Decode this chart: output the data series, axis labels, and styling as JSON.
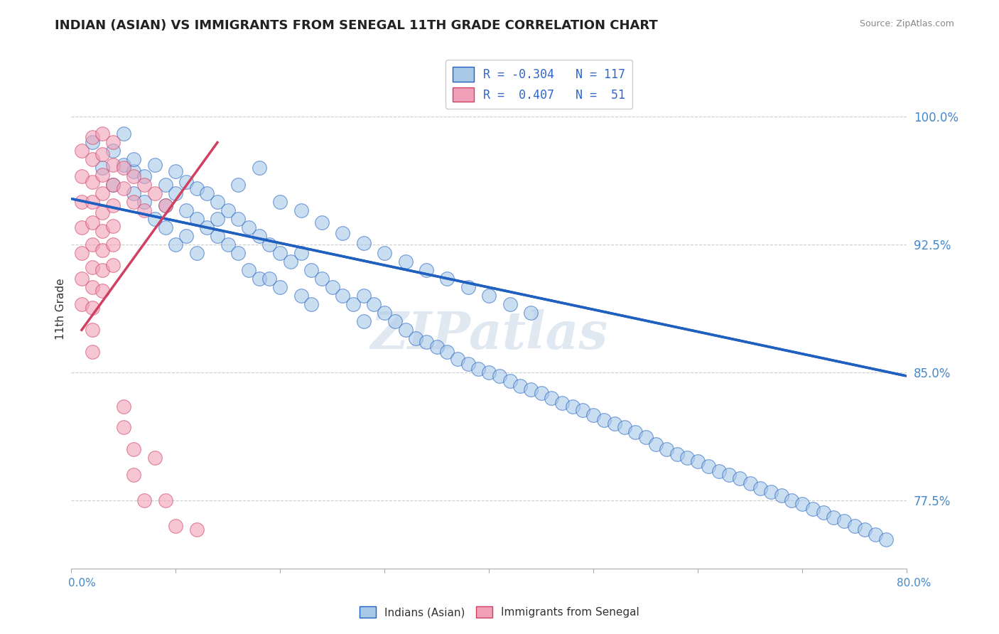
{
  "title": "INDIAN (ASIAN) VS IMMIGRANTS FROM SENEGAL 11TH GRADE CORRELATION CHART",
  "source": "Source: ZipAtlas.com",
  "ylabel": "11th Grade",
  "ytick_values": [
    0.775,
    0.85,
    0.925,
    1.0
  ],
  "xlim": [
    0.0,
    0.8
  ],
  "ylim": [
    0.735,
    1.04
  ],
  "color_blue": "#a8c8e8",
  "color_pink": "#f0a0b8",
  "trendline_blue": "#2060c0",
  "trendline_pink": "#d04060",
  "watermark": "ZIPatlas",
  "blue_trend_x0": 0.0,
  "blue_trend_y0": 0.952,
  "blue_trend_x1": 0.8,
  "blue_trend_y1": 0.848,
  "pink_trend_x0": 0.01,
  "pink_trend_y0": 0.875,
  "pink_trend_x1": 0.14,
  "pink_trend_y1": 0.985,
  "blue_x": [
    0.02,
    0.03,
    0.04,
    0.04,
    0.05,
    0.05,
    0.06,
    0.06,
    0.06,
    0.07,
    0.07,
    0.08,
    0.08,
    0.09,
    0.09,
    0.09,
    0.1,
    0.1,
    0.1,
    0.11,
    0.11,
    0.11,
    0.12,
    0.12,
    0.12,
    0.13,
    0.13,
    0.14,
    0.14,
    0.15,
    0.15,
    0.16,
    0.16,
    0.17,
    0.17,
    0.18,
    0.18,
    0.19,
    0.19,
    0.2,
    0.2,
    0.21,
    0.22,
    0.22,
    0.23,
    0.23,
    0.24,
    0.25,
    0.26,
    0.27,
    0.28,
    0.28,
    0.29,
    0.3,
    0.31,
    0.32,
    0.33,
    0.34,
    0.35,
    0.36,
    0.37,
    0.38,
    0.39,
    0.4,
    0.41,
    0.42,
    0.43,
    0.44,
    0.45,
    0.46,
    0.47,
    0.48,
    0.49,
    0.5,
    0.51,
    0.52,
    0.53,
    0.54,
    0.55,
    0.56,
    0.57,
    0.58,
    0.59,
    0.6,
    0.61,
    0.62,
    0.63,
    0.64,
    0.65,
    0.66,
    0.67,
    0.68,
    0.69,
    0.7,
    0.71,
    0.72,
    0.73,
    0.74,
    0.75,
    0.76,
    0.77,
    0.78,
    0.14,
    0.16,
    0.18,
    0.2,
    0.22,
    0.24,
    0.26,
    0.28,
    0.3,
    0.32,
    0.34,
    0.36,
    0.38,
    0.4,
    0.42,
    0.44
  ],
  "blue_y": [
    0.985,
    0.97,
    0.98,
    0.96,
    0.972,
    0.99,
    0.968,
    0.955,
    0.975,
    0.965,
    0.95,
    0.972,
    0.94,
    0.96,
    0.948,
    0.935,
    0.968,
    0.955,
    0.925,
    0.962,
    0.945,
    0.93,
    0.958,
    0.94,
    0.92,
    0.955,
    0.935,
    0.95,
    0.93,
    0.945,
    0.925,
    0.94,
    0.92,
    0.935,
    0.91,
    0.93,
    0.905,
    0.925,
    0.905,
    0.92,
    0.9,
    0.915,
    0.92,
    0.895,
    0.91,
    0.89,
    0.905,
    0.9,
    0.895,
    0.89,
    0.895,
    0.88,
    0.89,
    0.885,
    0.88,
    0.875,
    0.87,
    0.868,
    0.865,
    0.862,
    0.858,
    0.855,
    0.852,
    0.85,
    0.848,
    0.845,
    0.842,
    0.84,
    0.838,
    0.835,
    0.832,
    0.83,
    0.828,
    0.825,
    0.822,
    0.82,
    0.818,
    0.815,
    0.812,
    0.808,
    0.805,
    0.802,
    0.8,
    0.798,
    0.795,
    0.792,
    0.79,
    0.788,
    0.785,
    0.782,
    0.78,
    0.778,
    0.775,
    0.773,
    0.77,
    0.768,
    0.765,
    0.763,
    0.76,
    0.758,
    0.755,
    0.752,
    0.94,
    0.96,
    0.97,
    0.95,
    0.945,
    0.938,
    0.932,
    0.926,
    0.92,
    0.915,
    0.91,
    0.905,
    0.9,
    0.895,
    0.89,
    0.885
  ],
  "pink_x": [
    0.01,
    0.01,
    0.01,
    0.01,
    0.01,
    0.01,
    0.01,
    0.02,
    0.02,
    0.02,
    0.02,
    0.02,
    0.02,
    0.02,
    0.02,
    0.02,
    0.02,
    0.02,
    0.03,
    0.03,
    0.03,
    0.03,
    0.03,
    0.03,
    0.03,
    0.03,
    0.03,
    0.04,
    0.04,
    0.04,
    0.04,
    0.04,
    0.04,
    0.04,
    0.05,
    0.05,
    0.05,
    0.05,
    0.06,
    0.06,
    0.06,
    0.06,
    0.07,
    0.07,
    0.07,
    0.08,
    0.08,
    0.09,
    0.09,
    0.1,
    0.12
  ],
  "pink_y": [
    0.98,
    0.965,
    0.95,
    0.935,
    0.92,
    0.905,
    0.89,
    0.988,
    0.975,
    0.962,
    0.95,
    0.938,
    0.925,
    0.912,
    0.9,
    0.888,
    0.875,
    0.862,
    0.99,
    0.978,
    0.966,
    0.955,
    0.944,
    0.933,
    0.922,
    0.91,
    0.898,
    0.985,
    0.972,
    0.96,
    0.948,
    0.936,
    0.925,
    0.913,
    0.97,
    0.958,
    0.83,
    0.818,
    0.965,
    0.95,
    0.805,
    0.79,
    0.96,
    0.945,
    0.775,
    0.955,
    0.8,
    0.948,
    0.775,
    0.76,
    0.758
  ]
}
